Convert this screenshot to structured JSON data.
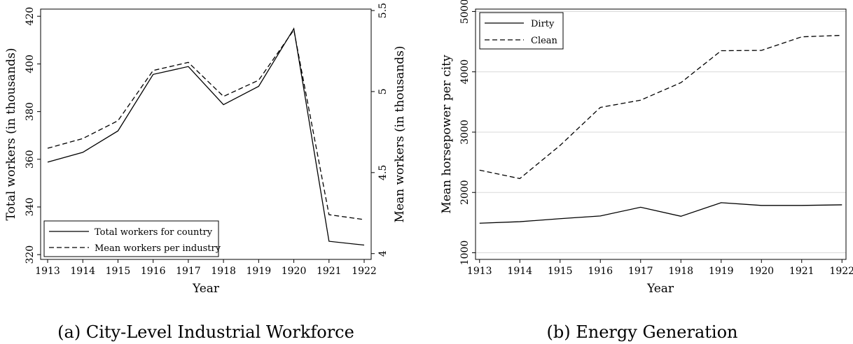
{
  "chart_data": [
    {
      "type": "line",
      "caption": "(a) City-Level Industrial Workforce",
      "xlabel": "Year",
      "ylabel": "Total workers (in thousands)",
      "y2label": "Mean workers (in thousands)",
      "x": [
        1913,
        1914,
        1915,
        1916,
        1917,
        1918,
        1919,
        1920,
        1921,
        1922
      ],
      "xlim": [
        1913,
        1922
      ],
      "ylim": [
        318,
        423
      ],
      "y2lim": [
        3.9642,
        5.5089
      ],
      "yticks": [
        320,
        340,
        360,
        380,
        400,
        420
      ],
      "y2ticks": [
        "4",
        "4.5",
        "5",
        "5.5"
      ],
      "grid": false,
      "legend_position": "bottom-left",
      "series": [
        {
          "name": "Total workers for country",
          "axis": "left",
          "style": "solid",
          "values": [
            358.8,
            362.9,
            371.9,
            395.6,
            398.9,
            382.9,
            390.6,
            414.8,
            325.6,
            324.0
          ]
        },
        {
          "name": "Mean workers per industry",
          "axis": "right",
          "style": "dashed",
          "values": [
            4.65,
            4.71,
            4.82,
            5.13,
            5.18,
            4.97,
            5.07,
            5.38,
            4.24,
            4.21
          ]
        }
      ]
    },
    {
      "type": "line",
      "caption": "(b) Energy Generation",
      "xlabel": "Year",
      "ylabel": "Mean horsepower per city",
      "x": [
        1913,
        1914,
        1915,
        1916,
        1917,
        1918,
        1919,
        1920,
        1921,
        1922
      ],
      "xlim": [
        1912.9,
        1922.1
      ],
      "ylim": [
        890,
        5040
      ],
      "yticks": [
        1000,
        2000,
        3000,
        4000,
        5000
      ],
      "grid": true,
      "legend_position": "top-left",
      "series": [
        {
          "name": "Dirty",
          "style": "solid",
          "values": [
            1490,
            1515,
            1565,
            1610,
            1755,
            1605,
            1830,
            1785,
            1785,
            1795
          ]
        },
        {
          "name": "Clean",
          "style": "dashed",
          "values": [
            2370,
            2230,
            2780,
            3410,
            3530,
            3820,
            4350,
            4355,
            4580,
            4605
          ]
        }
      ]
    }
  ]
}
